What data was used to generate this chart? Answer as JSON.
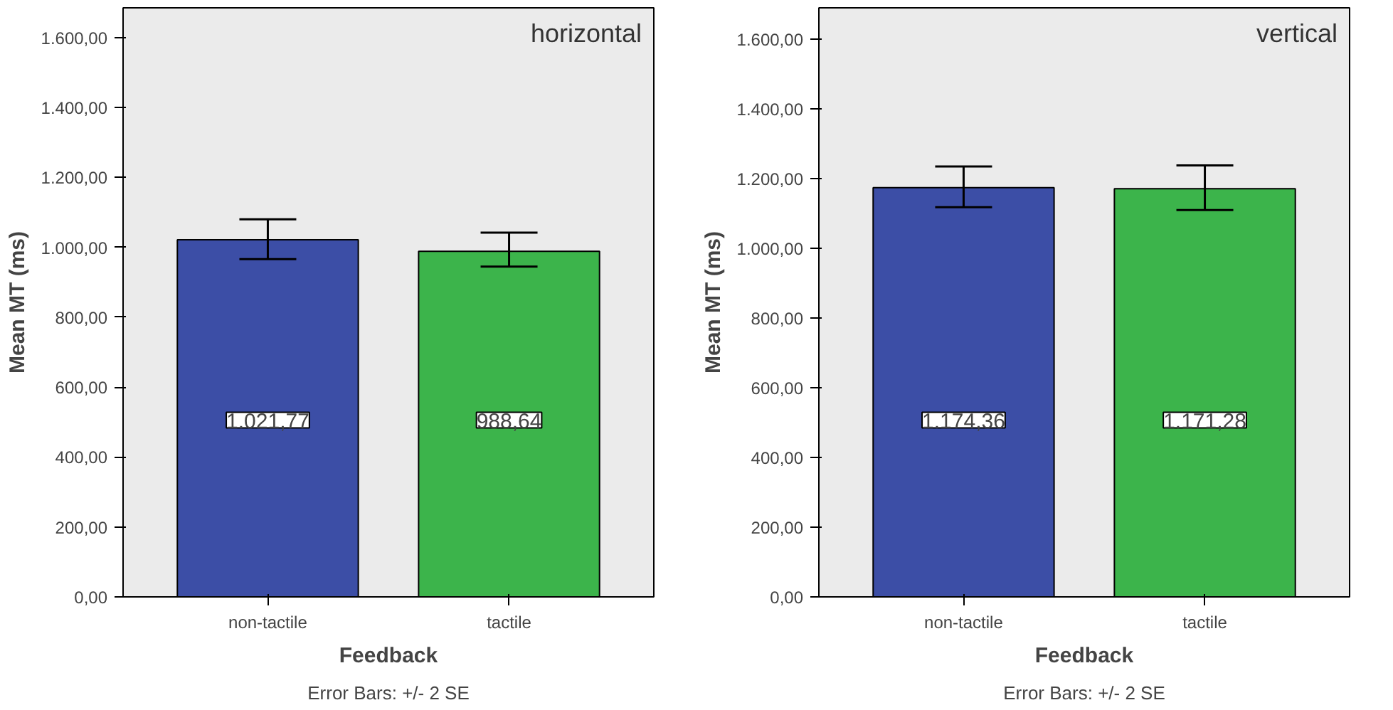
{
  "chart_data": [
    {
      "type": "bar",
      "categories": [
        "non-tactile",
        "tactile"
      ],
      "values": [
        1021.77,
        988.64
      ],
      "colors": [
        "#3c4ea6",
        "#3cb44b"
      ],
      "errors": [
        [
          966,
          1080
        ],
        [
          945,
          1042
        ]
      ],
      "value_labels": [
        "1.021,77",
        "988,64"
      ],
      "xlabel": "Feedback",
      "ylabel": "Mean MT (ms)",
      "ylim": [
        0,
        1685
      ],
      "yticks": [
        {
          "value": 0,
          "label": "0,00"
        },
        {
          "value": 200,
          "label": "200,00"
        },
        {
          "value": 400,
          "label": "400,00"
        },
        {
          "value": 600,
          "label": "600,00"
        },
        {
          "value": 800,
          "label": "800,00"
        },
        {
          "value": 1000,
          "label": "1.000,00"
        },
        {
          "value": 1200,
          "label": "1.200,00"
        },
        {
          "value": 1400,
          "label": "1.400,00"
        },
        {
          "value": 1600,
          "label": "1.600,00"
        }
      ],
      "annotations": [
        "horizontal",
        "Error Bars: +/- 2 SE"
      ]
    },
    {
      "type": "bar",
      "categories": [
        "non-tactile",
        "tactile"
      ],
      "values": [
        1174.36,
        1171.28
      ],
      "colors": [
        "#3c4ea6",
        "#3cb44b"
      ],
      "errors": [
        [
          1118,
          1235
        ],
        [
          1110,
          1238
        ]
      ],
      "value_labels": [
        "1.174,36",
        "1.171,28"
      ],
      "xlabel": "Feedback",
      "ylabel": "Mean MT (ms)",
      "ylim": [
        0,
        1690
      ],
      "yticks": [
        {
          "value": 0,
          "label": "0,00"
        },
        {
          "value": 200,
          "label": "200,00"
        },
        {
          "value": 400,
          "label": "400,00"
        },
        {
          "value": 600,
          "label": "600,00"
        },
        {
          "value": 800,
          "label": "800,00"
        },
        {
          "value": 1000,
          "label": "1.000,00"
        },
        {
          "value": 1200,
          "label": "1.200,00"
        },
        {
          "value": 1400,
          "label": "1.400,00"
        },
        {
          "value": 1600,
          "label": "1.600,00"
        }
      ],
      "annotations": [
        "vertical",
        "Error Bars: +/- 2 SE"
      ]
    }
  ]
}
